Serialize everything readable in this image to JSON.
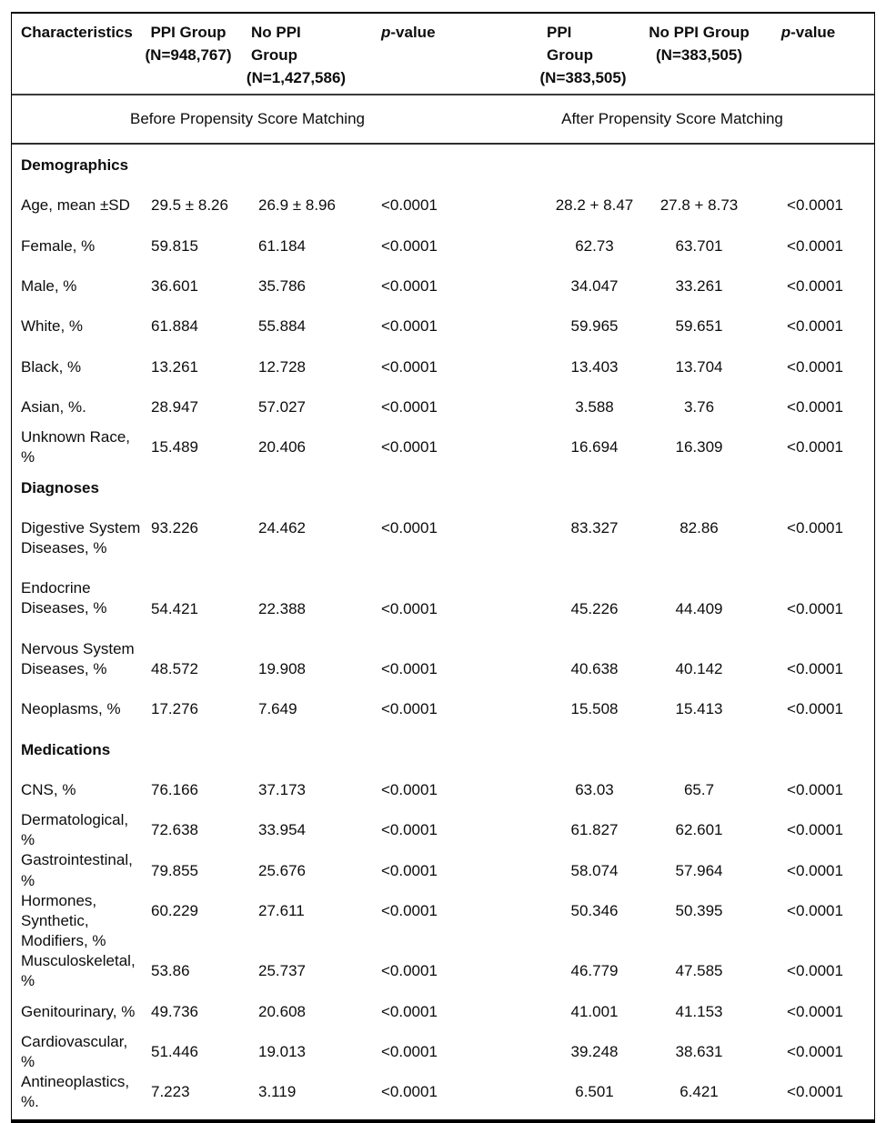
{
  "table": {
    "header": {
      "characteristics": "Characteristics",
      "before": {
        "ppi": {
          "line1": "PPI Group",
          "line2": "(N=948,767)"
        },
        "no_ppi": {
          "line1": "No PPI Group",
          "line2": "(N=1,427,586)"
        },
        "pvalue": {
          "p": "p",
          "rest": "-value"
        }
      },
      "after": {
        "ppi": {
          "line1": "PPI Group",
          "line2": "(N=383,505)"
        },
        "no_ppi": {
          "line1": "No PPI Group",
          "line2": "(N=383,505)"
        },
        "pvalue": {
          "p": "p",
          "rest": "-value"
        }
      },
      "before_caption": "Before Propensity Score Matching",
      "after_caption": "After Propensity Score Matching"
    },
    "sections": [
      {
        "title": "Demographics",
        "rows": [
          {
            "label": "Age, mean ±SD",
            "before": [
              "29.5 ± 8.26",
              "26.9 ± 8.96",
              "<0.0001"
            ],
            "after": [
              "28.2 + 8.47",
              "27.8 + 8.73",
              "<0.0001"
            ]
          },
          {
            "label": "Female, %",
            "before": [
              "59.815",
              "61.184",
              "<0.0001"
            ],
            "after": [
              "62.73",
              "63.701",
              "<0.0001"
            ]
          },
          {
            "label": "Male, %",
            "before": [
              "36.601",
              "35.786",
              "<0.0001"
            ],
            "after": [
              "34.047",
              "33.261",
              "<0.0001"
            ]
          },
          {
            "label": "White, %",
            "before": [
              "61.884",
              "55.884",
              "<0.0001"
            ],
            "after": [
              "59.965",
              "59.651",
              "<0.0001"
            ]
          },
          {
            "label": "Black, %",
            "before": [
              "13.261",
              "12.728",
              "<0.0001"
            ],
            "after": [
              "13.403",
              "13.704",
              "<0.0001"
            ]
          },
          {
            "label": "Asian, %.",
            "before": [
              "28.947",
              "57.027",
              "<0.0001"
            ],
            "after": [
              "3.588",
              "3.76",
              "<0.0001"
            ]
          },
          {
            "label": "Unknown Race, %",
            "before": [
              "15.489",
              "20.406",
              "<0.0001"
            ],
            "after": [
              "16.694",
              "16.309",
              "<0.0001"
            ]
          }
        ]
      },
      {
        "title": "Diagnoses",
        "rows": [
          {
            "label": [
              "Digestive System",
              "Diseases, %"
            ],
            "valign": "top",
            "before": [
              "93.226",
              "24.462",
              "<0.0001"
            ],
            "after": [
              "83.327",
              "82.86",
              "<0.0001"
            ]
          },
          {
            "label": [
              "Endocrine",
              "Diseases, %"
            ],
            "valign": "bottom",
            "before": [
              "54.421",
              "22.388",
              "<0.0001"
            ],
            "after": [
              "45.226",
              "44.409",
              "<0.0001"
            ]
          },
          {
            "label": [
              "Nervous System",
              "Diseases, %"
            ],
            "valign": "bottom",
            "before": [
              "48.572",
              "19.908",
              "<0.0001"
            ],
            "after": [
              "40.638",
              "40.142",
              "<0.0001"
            ]
          },
          {
            "label": "Neoplasms, %",
            "before": [
              "17.276",
              "7.649",
              "<0.0001"
            ],
            "after": [
              "15.508",
              "15.413",
              "<0.0001"
            ]
          }
        ]
      },
      {
        "title": "Medications",
        "rows": [
          {
            "label": "CNS, %",
            "before": [
              "76.166",
              "37.173",
              "<0.0001"
            ],
            "after": [
              "63.03",
              "65.7",
              "<0.0001"
            ]
          },
          {
            "label": "Dermatological, %",
            "before": [
              "72.638",
              "33.954",
              "<0.0001"
            ],
            "after": [
              "61.827",
              "62.601",
              "<0.0001"
            ]
          },
          {
            "label": "Gastrointestinal, %",
            "before": [
              "79.855",
              "25.676",
              "<0.0001"
            ],
            "after": [
              "58.074",
              "57.964",
              "<0.0001"
            ]
          },
          {
            "label": [
              "Hormones, Synthetic,",
              "Modifiers, %"
            ],
            "valign": "top",
            "before": [
              "60.229",
              "27.611",
              "<0.0001"
            ],
            "after": [
              "50.346",
              "50.395",
              "<0.0001"
            ]
          },
          {
            "label": "Musculoskeletal, %",
            "before": [
              "53.86",
              "25.737",
              "<0.0001"
            ],
            "after": [
              "46.779",
              "47.585",
              "<0.0001"
            ]
          },
          {
            "label": "Genitourinary, %",
            "before": [
              "49.736",
              "20.608",
              "<0.0001"
            ],
            "after": [
              "41.001",
              "41.153",
              "<0.0001"
            ]
          },
          {
            "label": "Cardiovascular, %",
            "before": [
              "51.446",
              "19.013",
              "<0.0001"
            ],
            "after": [
              "39.248",
              "38.631",
              "<0.0001"
            ]
          },
          {
            "label": "Antineoplastics, %.",
            "before": [
              "7.223",
              "3.119",
              "<0.0001"
            ],
            "after": [
              "6.501",
              "6.421",
              "<0.0001"
            ]
          }
        ]
      }
    ]
  }
}
